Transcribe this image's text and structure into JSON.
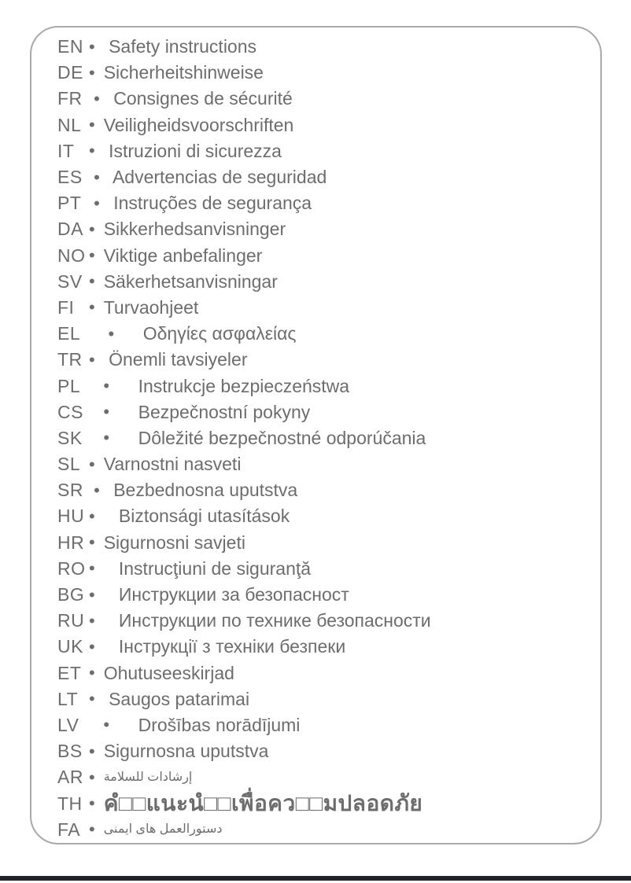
{
  "colors": {
    "text": "#6d6d6d",
    "border": "#a9a9a9",
    "bar": "#20242a",
    "background": "#ffffff"
  },
  "list": {
    "items": [
      {
        "code": "EN",
        "bullet": "•",
        "label": " Safety instructions"
      },
      {
        "code": "DE",
        "bullet": "•",
        "label": "Sicherheitshinweise"
      },
      {
        "code": "FR",
        "bullet": " •",
        "label": " Consignes de sécurité"
      },
      {
        "code": "NL",
        "bullet": "•",
        "label": "Veiligheidsvoorschriften"
      },
      {
        "code": "IT",
        "bullet": "•",
        "label": " Istruzioni di sicurezza"
      },
      {
        "code": "ES",
        "bullet": " •",
        "label": " Advertencias de seguridad"
      },
      {
        "code": "PT",
        "bullet": " •",
        "label": " Instruções de segurança"
      },
      {
        "code": "DA",
        "bullet": "•",
        "label": "Sikkerhedsanvisninger"
      },
      {
        "code": "NO",
        "bullet": "•",
        "label": "Viktige anbefalinger"
      },
      {
        "code": "SV",
        "bullet": "•",
        "label": "Säkerhetsanvisningar"
      },
      {
        "code": "FI",
        "bullet": "•",
        "label": "Turvaohjeet"
      },
      {
        "code": "EL",
        "bullet": "    •",
        "label": "    Οδηγίες ασφαλείας"
      },
      {
        "code": "TR",
        "bullet": "•",
        "label": " Önemli tavsiyeler"
      },
      {
        "code": "PL",
        "bullet": "   •",
        "label": "    Instrukcje bezpieczeństwa"
      },
      {
        "code": "CS",
        "bullet": "   •",
        "label": "    Bezpečnostní pokyny"
      },
      {
        "code": "SK",
        "bullet": "   •",
        "label": "    Dôležité bezpečnostné odporúčania"
      },
      {
        "code": "SL",
        "bullet": "•",
        "label": "Varnostni nasveti"
      },
      {
        "code": "SR",
        "bullet": " •",
        "label": " Bezbednosna uputstva"
      },
      {
        "code": "HU",
        "bullet": "•",
        "label": "   Biztonsági utasítások"
      },
      {
        "code": "HR",
        "bullet": "•",
        "label": "Sigurnosni savjeti"
      },
      {
        "code": "RO",
        "bullet": "•",
        "label": "   Instrucţiuni de siguranţă"
      },
      {
        "code": "BG",
        "bullet": "•",
        "label": "   Инструкции за безопасност"
      },
      {
        "code": "RU",
        "bullet": "•",
        "label": "   Инструкции по технике безопасности"
      },
      {
        "code": "UK",
        "bullet": "•",
        "label": "   Інструкції з техніки безпеки"
      },
      {
        "code": "ET",
        "bullet": "•",
        "label": "Ohutuseeskirjad"
      },
      {
        "code": "LT",
        "bullet": "•",
        "label": " Saugos patarimai"
      },
      {
        "code": "LV",
        "bullet": "   •",
        "label": "    Drošības norādījumi"
      },
      {
        "code": "BS",
        "bullet": "•",
        "label": "Sigurnosna uputstva"
      },
      {
        "code": "AR",
        "bullet": "•",
        "label": "إرشادات للسلامة",
        "size": "small"
      },
      {
        "code": "TH",
        "bullet": "•",
        "label": "คํ□□แนะนํ□□เพื่อคว□□มปลอดภัย",
        "size": "large"
      },
      {
        "code": "FA",
        "bullet": "•",
        "label": "دستورالعمل های ایمنی",
        "size": "small"
      }
    ]
  }
}
